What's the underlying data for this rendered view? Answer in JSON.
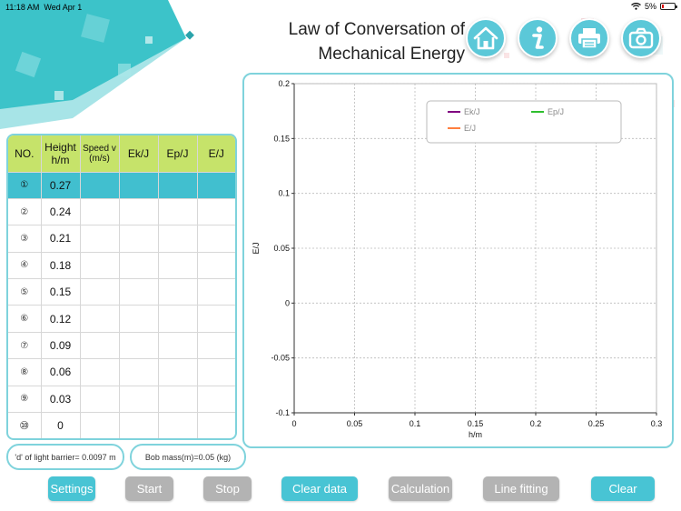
{
  "status_bar": {
    "time": "11:18 AM",
    "date": "Wed Apr 1",
    "battery": "5%"
  },
  "title": {
    "line1": "Law of Conversation of",
    "line2": "Mechanical Energy"
  },
  "nav_icons": [
    "home-icon",
    "info-icon",
    "print-icon",
    "camera-icon"
  ],
  "colors": {
    "accent": "#48c4d4",
    "header": "#c6e36a",
    "disabled": "#b3b3b3",
    "ek": "#800080",
    "ep": "#2fbf2f",
    "e": "#ff7f3f"
  },
  "table": {
    "headers": {
      "no": "NO.",
      "height": "Height h/m",
      "speed_line1": "Speed v",
      "speed_line2": "(m/s)",
      "ek": "Ek/J",
      "ep": "Ep/J",
      "e": "E/J"
    },
    "rows": [
      {
        "no": "①",
        "height": "0.27",
        "speed": "",
        "ek": "",
        "ep": "",
        "e": ""
      },
      {
        "no": "②",
        "height": "0.24",
        "speed": "",
        "ek": "",
        "ep": "",
        "e": ""
      },
      {
        "no": "③",
        "height": "0.21",
        "speed": "",
        "ek": "",
        "ep": "",
        "e": ""
      },
      {
        "no": "④",
        "height": "0.18",
        "speed": "",
        "ek": "",
        "ep": "",
        "e": ""
      },
      {
        "no": "⑤",
        "height": "0.15",
        "speed": "",
        "ek": "",
        "ep": "",
        "e": ""
      },
      {
        "no": "⑥",
        "height": "0.12",
        "speed": "",
        "ek": "",
        "ep": "",
        "e": ""
      },
      {
        "no": "⑦",
        "height": "0.09",
        "speed": "",
        "ek": "",
        "ep": "",
        "e": ""
      },
      {
        "no": "⑧",
        "height": "0.06",
        "speed": "",
        "ek": "",
        "ep": "",
        "e": ""
      },
      {
        "no": "⑨",
        "height": "0.03",
        "speed": "",
        "ek": "",
        "ep": "",
        "e": ""
      },
      {
        "no": "⑩",
        "height": "0",
        "speed": "",
        "ek": "",
        "ep": "",
        "e": ""
      }
    ]
  },
  "info": {
    "barrier": "'d' of light barrier= 0.0097 m",
    "mass": "Bob mass(m)=0.05 (kg)"
  },
  "buttons": {
    "settings": "Settings",
    "start": "Start",
    "stop": "Stop",
    "clear_data": "Clear data",
    "calculation": "Calculation",
    "line_fitting": "Line fitting",
    "clear": "Clear"
  },
  "chart_data": {
    "type": "line",
    "xlabel": "h/m",
    "ylabel": "E/J",
    "xlim": [
      0,
      0.3
    ],
    "ylim": [
      -0.1,
      0.2
    ],
    "x_ticks": [
      "0",
      "0.05",
      "0.1",
      "0.15",
      "0.2",
      "0.25",
      "0.3"
    ],
    "y_ticks": [
      "0.2",
      "0.15",
      "0.1",
      "0.05",
      "0",
      "-0.05",
      "-0.1"
    ],
    "grid": true,
    "legend_position": "top",
    "series": [
      {
        "name": "Ek/J",
        "color": "#800080",
        "values": []
      },
      {
        "name": "Ep/J",
        "color": "#2fbf2f",
        "values": []
      },
      {
        "name": "E/J",
        "color": "#ff7f3f",
        "values": []
      }
    ]
  }
}
